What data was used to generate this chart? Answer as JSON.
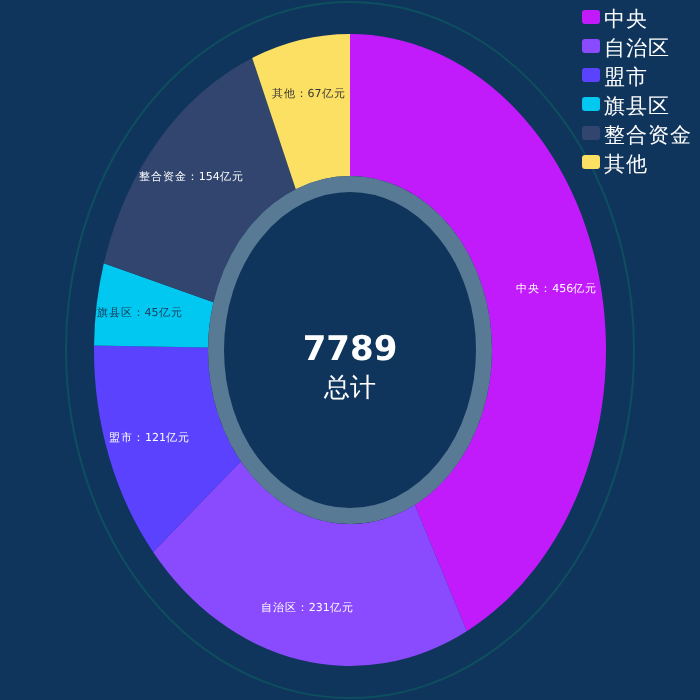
{
  "chart_data": {
    "type": "donut",
    "categories": [
      "中央",
      "自治区",
      "盟市",
      "旗县区",
      "整合资金",
      "其他"
    ],
    "values": [
      456,
      231,
      121,
      45,
      154,
      67
    ],
    "colors": [
      "#c21bfb",
      "#8a4bff",
      "#5b42ff",
      "#00c8f0",
      "#31456e",
      "#fbe064"
    ],
    "value_labels": [
      "中央：456亿元",
      "自治区：231亿元",
      "盟市：121亿元",
      "旗县区：45亿元",
      "整合资金：154亿元",
      "其他：67亿元"
    ],
    "annotations": [
      "7789",
      "总计"
    ],
    "legend": "top right"
  }
}
